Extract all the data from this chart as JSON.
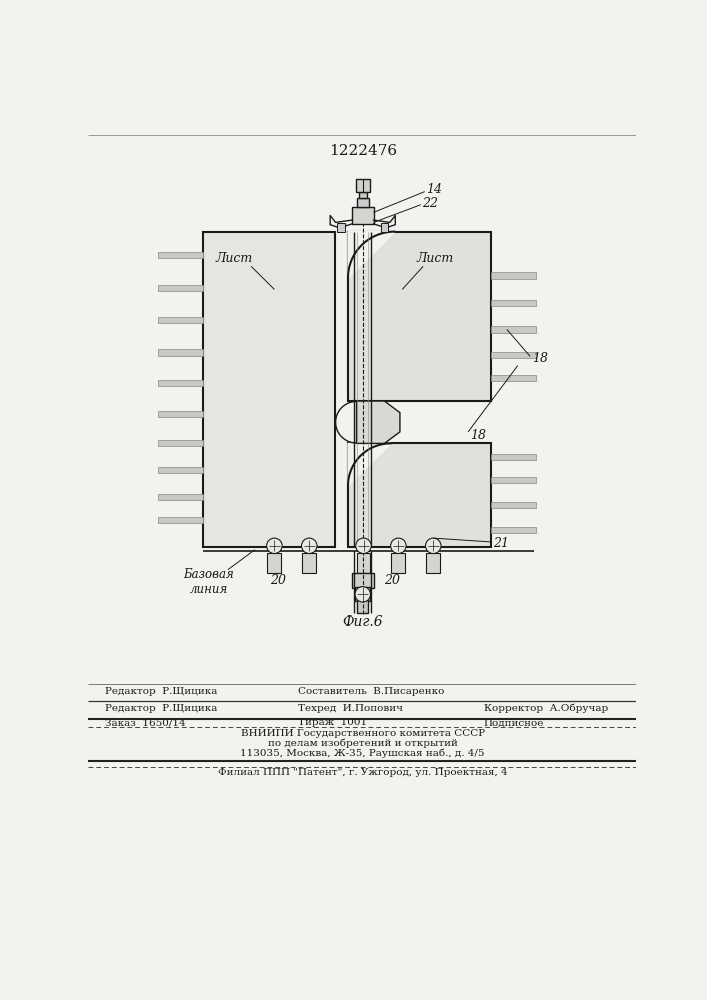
{
  "patent_number": "1222476",
  "fig_label": "Фиг.6",
  "bg_color": "#f2f2ee",
  "line_color": "#1a1a1a",
  "label_14": "14",
  "label_22": "22",
  "label_18a": "18",
  "label_18b": "18",
  "label_20a": "20",
  "label_20b": "20",
  "label_21": "21",
  "label_list_left": "Лист",
  "label_list_right": "Лист",
  "label_bazovaya": "Базовая\nлиния",
  "footer_line1": "Составитель  В.Писаренко",
  "footer_editor": "Редактор  Р.Щицика",
  "footer_tekhred": "Техред  И.Попович",
  "footer_korrektor": "Корректор  А.Обручар",
  "footer_zakaz": "Заказ  1650/14",
  "footer_tirazh": "Тираж  1001",
  "footer_podpisnoe": "Подписное",
  "footer_vnipi": "ВНИИПИ Государственного комитета СССР",
  "footer_po_delam": "по делам изобретений и открытий",
  "footer_address": "113035, Москва, Ж-35, Раушская наб., д. 4/5",
  "footer_filial": "Филиал ППП \"Патент\", г. Ужгород, ул. Проектная, 4"
}
